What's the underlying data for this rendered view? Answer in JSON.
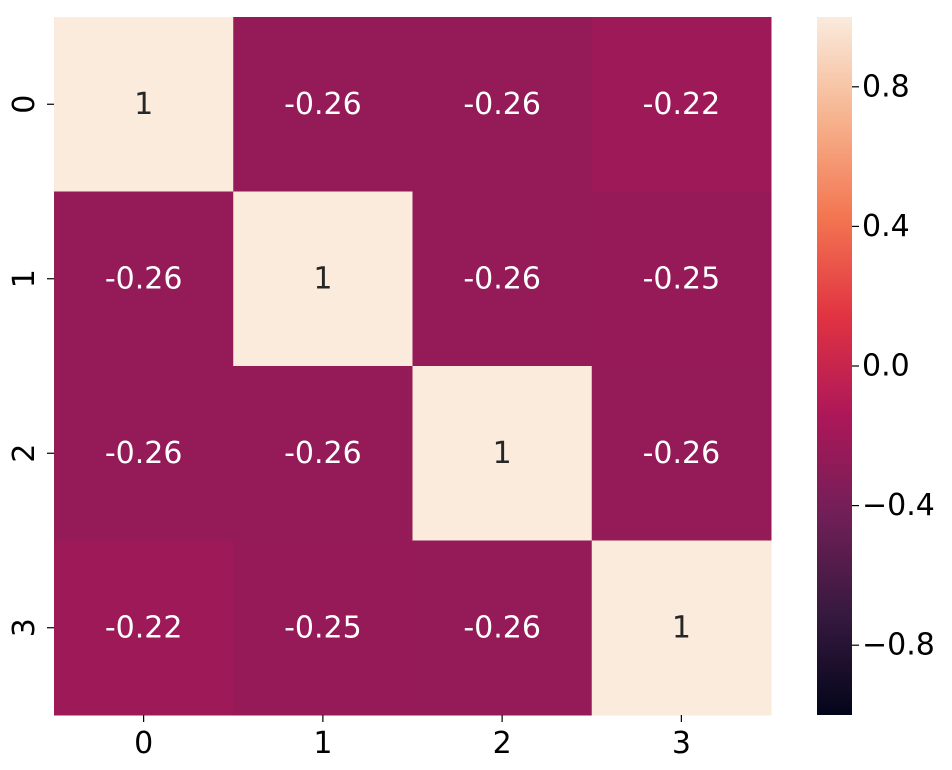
{
  "chart_data": {
    "type": "heatmap",
    "title": "",
    "xlabel": "",
    "ylabel": "",
    "x_categories": [
      "0",
      "1",
      "2",
      "3"
    ],
    "y_categories": [
      "0",
      "1",
      "2",
      "3"
    ],
    "values": [
      [
        1,
        -0.26,
        -0.26,
        -0.22
      ],
      [
        -0.26,
        1,
        -0.26,
        -0.25
      ],
      [
        -0.26,
        -0.26,
        1,
        -0.26
      ],
      [
        -0.22,
        -0.25,
        -0.26,
        1
      ]
    ],
    "cell_labels": [
      [
        "1",
        "-0.26",
        "-0.26",
        "-0.22"
      ],
      [
        "-0.26",
        "1",
        "-0.26",
        "-0.25"
      ],
      [
        "-0.26",
        "-0.26",
        "1",
        "-0.26"
      ],
      [
        "-0.22",
        "-0.25",
        "-0.26",
        "1"
      ]
    ],
    "colorbar": {
      "vmin": -1,
      "vmax": 1,
      "ticks": [
        0.8,
        0.4,
        0.0,
        -0.4,
        -0.8
      ],
      "tick_labels": [
        "0.8",
        "0.4",
        "0.0",
        "−0.4",
        "−0.8"
      ],
      "placement": "right",
      "colormap": "rocket",
      "stops": [
        "#03051a",
        "#36193e",
        "#701f57",
        "#ad1759",
        "#e13342",
        "#f37651",
        "#f6b48f",
        "#faebdd"
      ]
    },
    "grid": false
  }
}
